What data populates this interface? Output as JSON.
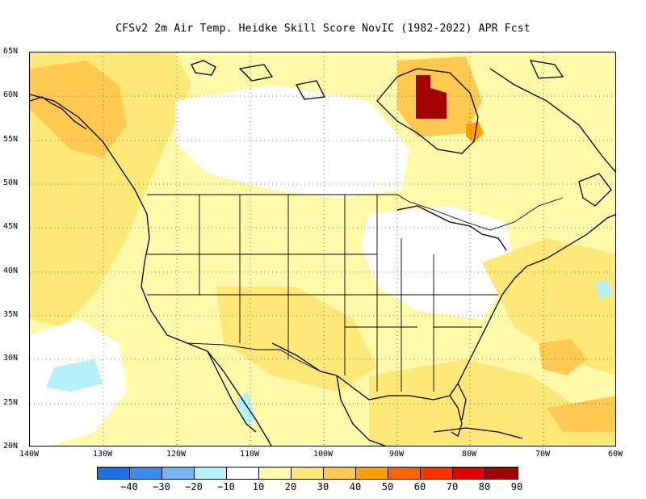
{
  "title": "CFSv2  2m Air Temp. Heidke Skill Score NovIC (1982-2022) APR Fcst",
  "lat_labels": [
    "65N",
    "60N",
    "55N",
    "50N",
    "45N",
    "40N",
    "35N",
    "30N",
    "25N",
    "20N"
  ],
  "lon_labels": [
    "140W",
    "130W",
    "120W",
    "110W",
    "100W",
    "90W",
    "80W",
    "70W",
    "60W"
  ],
  "colorbar": {
    "ticks": [
      "−40",
      "−30",
      "−20",
      "−10",
      "10",
      "20",
      "30",
      "40",
      "50",
      "60",
      "70",
      "80",
      "90"
    ],
    "colors": [
      "#1e6ee6",
      "#3c8cf0",
      "#78b4f5",
      "#b4f0fa",
      "#ffffff",
      "#fffaaa",
      "#ffe878",
      "#ffc850",
      "#ffa000",
      "#ff6400",
      "#ff3200",
      "#e10000",
      "#a50000"
    ]
  },
  "colors": {
    "skill_10_20": "#fffaaa",
    "skill_20_30": "#ffe878",
    "skill_30_40": "#ffc850",
    "skill_80_90": "#a50000",
    "skill_neg_10": "#b4f0fa"
  }
}
